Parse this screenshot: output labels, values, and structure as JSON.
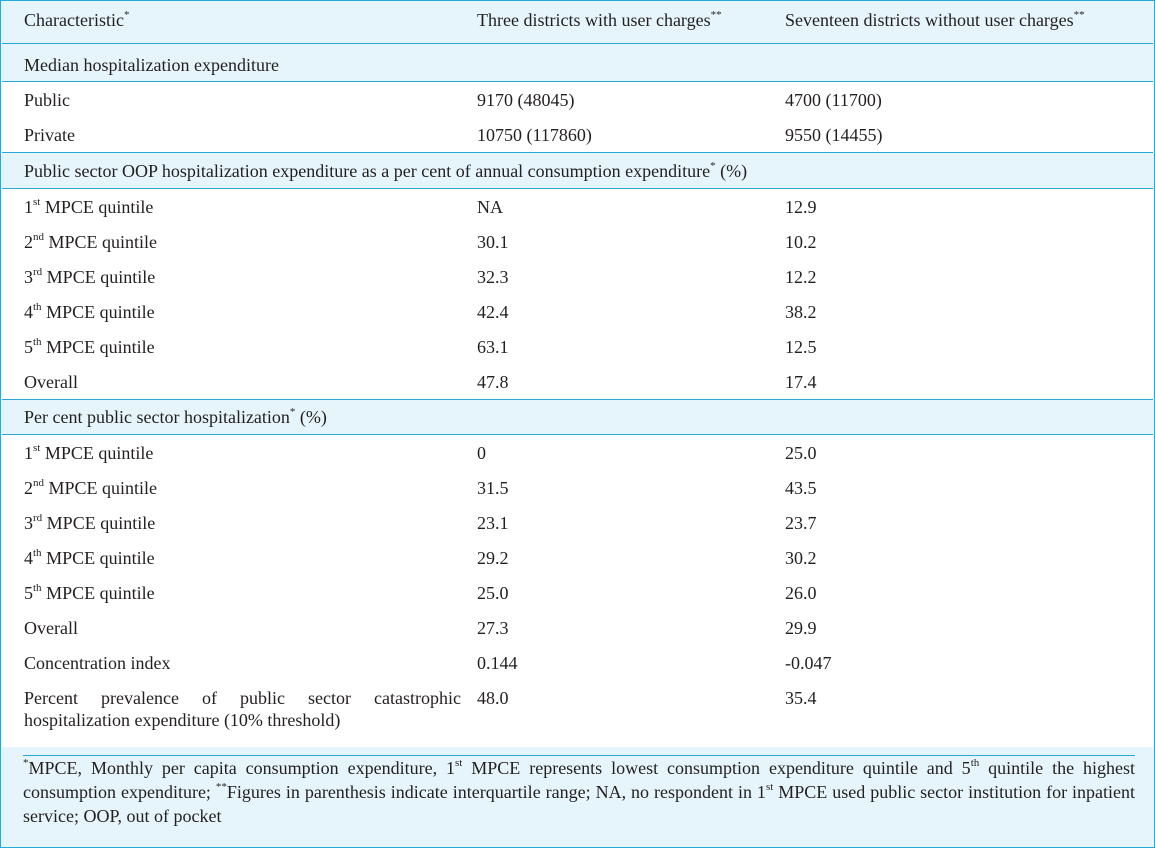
{
  "header": {
    "col1": "Characteristic",
    "col1_mark": "*",
    "col2": "Three districts with user charges",
    "col2_mark": "**",
    "col3": "Seventeen districts without user charges",
    "col3_mark": "**"
  },
  "sections": [
    {
      "title": "Median hospitalization expenditure",
      "title_mark": "",
      "title_suffix": "",
      "rows": [
        {
          "label": "Public",
          "sup": "",
          "rest": "",
          "v1": "9170 (48045)",
          "v2": "4700 (11700)"
        },
        {
          "label": "Private",
          "sup": "",
          "rest": "",
          "v1": "10750 (117860)",
          "v2": "9550 (14455)"
        }
      ]
    },
    {
      "title": "Public sector OOP hospitalization expenditure as a per cent of annual consumption expenditure",
      "title_mark": "*",
      "title_suffix": " (%)",
      "rows": [
        {
          "label": "1",
          "sup": "st",
          "rest": " MPCE quintile",
          "v1": "NA",
          "v2": "12.9"
        },
        {
          "label": "2",
          "sup": "nd",
          "rest": " MPCE quintile",
          "v1": "30.1",
          "v2": "10.2"
        },
        {
          "label": "3",
          "sup": "rd",
          "rest": " MPCE quintile",
          "v1": "32.3",
          "v2": "12.2"
        },
        {
          "label": "4",
          "sup": "th",
          "rest": " MPCE quintile",
          "v1": "42.4",
          "v2": "38.2"
        },
        {
          "label": "5",
          "sup": "th",
          "rest": " MPCE quintile",
          "v1": "63.1",
          "v2": "12.5"
        },
        {
          "label": "Overall",
          "sup": "",
          "rest": "",
          "v1": "47.8",
          "v2": "17.4"
        }
      ]
    },
    {
      "title": "Per cent public sector hospitalization",
      "title_mark": "*",
      "title_suffix": " (%)",
      "rows": [
        {
          "label": "1",
          "sup": "st",
          "rest": " MPCE quintile",
          "v1": "0",
          "v2": "25.0"
        },
        {
          "label": "2",
          "sup": "nd",
          "rest": " MPCE quintile",
          "v1": "31.5",
          "v2": "43.5"
        },
        {
          "label": "3",
          "sup": "rd",
          "rest": " MPCE quintile",
          "v1": "23.1",
          "v2": "23.7"
        },
        {
          "label": "4",
          "sup": "th",
          "rest": " MPCE quintile",
          "v1": "29.2",
          "v2": "30.2"
        },
        {
          "label": "5",
          "sup": "th",
          "rest": " MPCE quintile",
          "v1": "25.0",
          "v2": "26.0"
        },
        {
          "label": "Overall",
          "sup": "",
          "rest": "",
          "v1": "27.3",
          "v2": "29.9"
        },
        {
          "label": "Concentration index",
          "sup": "",
          "rest": "",
          "v1": "0.144",
          "v2": "-0.047"
        },
        {
          "label": "Percent prevalence of public sector catastrophic hospitalization expenditure (10% threshold)",
          "sup": "",
          "rest": "",
          "v1": "48.0",
          "v2": "35.4"
        }
      ]
    }
  ],
  "footnote": {
    "m1": "*",
    "p1": "MPCE, Monthly per capita consumption expenditure, 1",
    "s1": "st",
    "p2": " MPCE represents lowest consumption expenditure quintile and 5",
    "s2": "th",
    "p3": " quintile the highest consumption expenditure; ",
    "m2": "**",
    "p4": "Figures in parenthesis indicate interquartile range; NA, no respondent in 1",
    "s3": "st",
    "p5": " MPCE used public sector institution for inpatient service; OOP, out of pocket"
  }
}
